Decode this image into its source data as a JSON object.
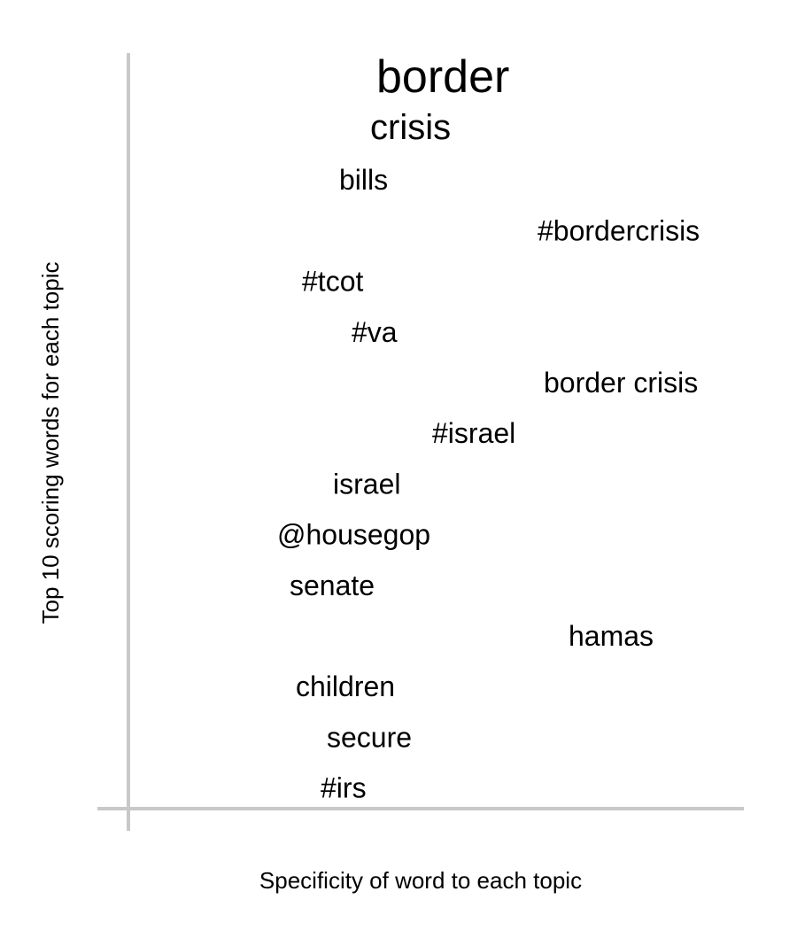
{
  "chart_data": {
    "type": "scatter",
    "title": "",
    "xlabel": "Specificity of word to each topic",
    "ylabel": "Top 10 scoring words for each topic",
    "grid": false,
    "axis_color": "#c8c8c8",
    "text_color": "#000000",
    "note": "word cloud style plot: each word placed by specificity (x) and rank (y); font size reflects score",
    "words": [
      {
        "label": "border",
        "x": 0.4,
        "rank": 1,
        "weight": 1.0
      },
      {
        "label": "crisis",
        "x": 0.39,
        "rank": 2,
        "weight": 0.8
      },
      {
        "label": "bills",
        "x": 0.34,
        "rank": 3,
        "weight": 0.72
      },
      {
        "label": "#bordercrisis",
        "x": 0.66,
        "rank": 4,
        "weight": 0.72
      },
      {
        "label": "#tcot",
        "x": 0.28,
        "rank": 5,
        "weight": 0.72
      },
      {
        "label": "#va",
        "x": 0.36,
        "rank": 6,
        "weight": 0.72
      },
      {
        "label": "border crisis",
        "x": 0.67,
        "rank": 7,
        "weight": 0.72
      },
      {
        "label": "#israel",
        "x": 0.49,
        "rank": 8,
        "weight": 0.72
      },
      {
        "label": "israel",
        "x": 0.33,
        "rank": 9,
        "weight": 0.72
      },
      {
        "label": "@housegop",
        "x": 0.24,
        "rank": 10,
        "weight": 0.72
      },
      {
        "label": "senate",
        "x": 0.26,
        "rank": 11,
        "weight": 0.72
      },
      {
        "label": "hamas",
        "x": 0.71,
        "rank": 12,
        "weight": 0.72
      },
      {
        "label": "children",
        "x": 0.27,
        "rank": 13,
        "weight": 0.72
      },
      {
        "label": "secure",
        "x": 0.32,
        "rank": 14,
        "weight": 0.72
      },
      {
        "label": "#irs",
        "x": 0.31,
        "rank": 15,
        "weight": 0.72
      }
    ]
  }
}
